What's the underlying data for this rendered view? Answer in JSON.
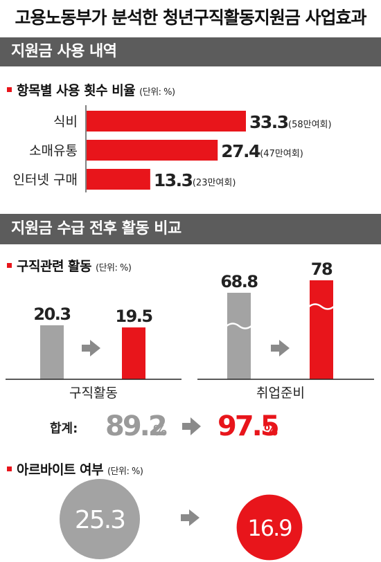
{
  "title": "고용노동부가 분석한 청년구직활동지원금 사업효과",
  "sections": {
    "usage": "지원금 사용 내역",
    "compare": "지원금 수급 전후 활동 비교"
  },
  "colors": {
    "accent": "#e8151b",
    "gray": "#a3a3a3",
    "band": "#5c5c5c"
  },
  "chart_data": [
    {
      "type": "bar",
      "orientation": "horizontal",
      "title": "항목별 사용 횟수 비율",
      "unit": "(단위: %)",
      "categories": [
        "식비",
        "소매유통",
        "인터넷 구매"
      ],
      "values": [
        33.3,
        27.4,
        13.3
      ],
      "annotations": [
        "(58만여회)",
        "(47만여회)",
        "(23만여회)"
      ]
    },
    {
      "type": "bar",
      "title": "구직관련 활동",
      "unit": "(단위: %)",
      "groups": [
        {
          "label": "구직활동",
          "before": 20.3,
          "after": 19.5
        },
        {
          "label": "취업준비",
          "before": 68.8,
          "after": 78
        }
      ],
      "total": {
        "label": "합계:",
        "before": "89.2",
        "after": "97.5",
        "unit": "%"
      }
    },
    {
      "type": "bubble",
      "title": "아르바이트 여부",
      "unit": "(단위: %)",
      "before": 25.3,
      "after": 16.9
    }
  ]
}
